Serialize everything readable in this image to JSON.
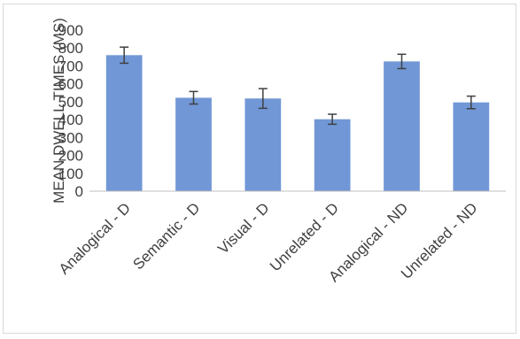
{
  "chart_data": {
    "type": "bar",
    "title": "",
    "xlabel": "",
    "ylabel": "MEAN DWELL TIMES (MS)",
    "ylim": [
      0,
      900
    ],
    "yticks": [
      0,
      100,
      200,
      300,
      400,
      500,
      600,
      700,
      800,
      900
    ],
    "grid": false,
    "legend": "none",
    "categories": [
      "Analogical - D",
      "Semantic - D",
      "Visual - D",
      "Unrelated - D",
      "Analogical - ND",
      "Unrelated - ND"
    ],
    "values": [
      760,
      522,
      518,
      402,
      725,
      496
    ],
    "errors": [
      45,
      35,
      55,
      28,
      40,
      35
    ],
    "colors": {
      "bar": "#7197d6",
      "axis": "#bfbfbf",
      "text": "#404040",
      "error_bar": "#404040"
    }
  }
}
